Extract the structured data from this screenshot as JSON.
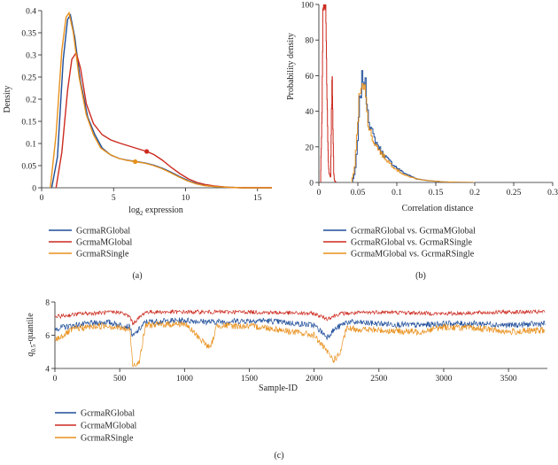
{
  "colors": {
    "blue": "#1f4e9a",
    "red": "#cc2a1f",
    "orange": "#e8901c",
    "axis": "#222222"
  },
  "chart_data": [
    {
      "id": "a",
      "type": "line",
      "panel_label": "(a)",
      "xlabel_main": "log",
      "xlabel_sub": "2",
      "xlabel_rest": " expression",
      "ylabel": "Density",
      "xlim": [
        0,
        16
      ],
      "ylim": [
        0,
        0.4
      ],
      "xticks": [
        0,
        5,
        10,
        15
      ],
      "yticks": [
        0,
        0.05,
        0.1,
        0.15,
        0.2,
        0.25,
        0.3,
        0.35,
        0.4
      ],
      "series": [
        {
          "name": "GcrmaRGlobal",
          "color": "#1f4e9a",
          "x": [
            0.7,
            1.1,
            1.5,
            1.8,
            2.0,
            2.3,
            2.7,
            3.2,
            3.7,
            4.2,
            4.8,
            5.4,
            6.0,
            6.6,
            7.2,
            7.8,
            8.4,
            9.0,
            9.6,
            10.2,
            10.8,
            11.4,
            12.0,
            13.0,
            14.0,
            15.0,
            16.0
          ],
          "y": [
            0.0,
            0.07,
            0.29,
            0.38,
            0.39,
            0.34,
            0.24,
            0.16,
            0.12,
            0.09,
            0.074,
            0.066,
            0.062,
            0.059,
            0.056,
            0.051,
            0.044,
            0.035,
            0.025,
            0.016,
            0.009,
            0.005,
            0.003,
            0.001,
            0.0,
            0.0,
            0.0
          ]
        },
        {
          "name": "GcrmaMGlobal",
          "color": "#cc2a1f",
          "x": [
            1.0,
            1.4,
            1.8,
            2.1,
            2.4,
            2.7,
            3.1,
            3.6,
            4.2,
            4.8,
            5.5,
            6.2,
            6.8,
            7.3,
            7.8,
            8.4,
            9.0,
            9.6,
            10.2,
            10.8,
            11.4,
            12.0,
            13.0,
            14.0,
            15.0,
            16.0
          ],
          "y": [
            0.0,
            0.08,
            0.22,
            0.29,
            0.305,
            0.27,
            0.19,
            0.145,
            0.12,
            0.108,
            0.1,
            0.093,
            0.087,
            0.082,
            0.075,
            0.062,
            0.046,
            0.032,
            0.02,
            0.012,
            0.007,
            0.004,
            0.001,
            0.0,
            0.0,
            0.0
          ]
        },
        {
          "name": "GcrmaRSingle",
          "color": "#e8901c",
          "x": [
            0.6,
            1.0,
            1.4,
            1.7,
            1.9,
            2.2,
            2.6,
            3.1,
            3.6,
            4.1,
            4.7,
            5.3,
            5.9,
            6.5,
            7.1,
            7.7,
            8.3,
            8.9,
            9.5,
            10.1,
            10.7,
            11.3,
            12.0,
            13.0,
            14.0,
            15.0,
            16.0
          ],
          "y": [
            0.0,
            0.12,
            0.31,
            0.385,
            0.395,
            0.35,
            0.25,
            0.165,
            0.12,
            0.09,
            0.076,
            0.067,
            0.062,
            0.059,
            0.056,
            0.051,
            0.044,
            0.035,
            0.025,
            0.016,
            0.009,
            0.005,
            0.003,
            0.001,
            0.0,
            0.0,
            0.0
          ]
        }
      ],
      "markers": [
        {
          "x": 6.5,
          "y": 0.059,
          "color": "#e8901c"
        },
        {
          "x": 7.3,
          "y": 0.082,
          "color": "#cc2a1f"
        }
      ],
      "legend": [
        "GcrmaRGlobal",
        "GcrmaMGlobal",
        "GcrmaRSingle"
      ]
    },
    {
      "id": "b",
      "type": "line",
      "panel_label": "(b)",
      "xlabel": "Correlation distance",
      "ylabel": "Probability density",
      "xlim": [
        0,
        0.3
      ],
      "ylim": [
        0,
        100
      ],
      "xticks": [
        "0",
        "0.05",
        "0.1",
        "0.15",
        "0.2",
        "0.25",
        "0.3"
      ],
      "yticks": [
        "0",
        "20",
        "40",
        "60",
        "80",
        "100"
      ],
      "series": [
        {
          "name": "GcrmaRGlobal vs. GcrmaMGlobal",
          "color": "#1f4e9a",
          "x": [
            0.042,
            0.046,
            0.049,
            0.052,
            0.055,
            0.057,
            0.059,
            0.062,
            0.065,
            0.07,
            0.075,
            0.08,
            0.09,
            0.1,
            0.11,
            0.125,
            0.14,
            0.16,
            0.2
          ],
          "y": [
            0,
            6,
            22,
            45,
            58,
            60,
            55,
            42,
            32,
            25,
            21,
            17,
            12,
            8,
            5,
            2,
            1,
            0.3,
            0
          ]
        },
        {
          "name": "GcrmaRGlobal vs. GcrmaRSingle",
          "color": "#cc2a1f",
          "x": [
            0.002,
            0.004,
            0.005,
            0.006,
            0.007,
            0.008,
            0.009,
            0.01,
            0.011,
            0.012,
            0.013,
            0.014,
            0.015,
            0.016,
            0.017,
            0.018,
            0.019,
            0.02,
            0.022
          ],
          "y": [
            0,
            40,
            90,
            100,
            100,
            100,
            95,
            60,
            30,
            12,
            5,
            4,
            3,
            40,
            61,
            30,
            5,
            1,
            0
          ]
        },
        {
          "name": "GcrmaMGlobal vs. GcrmaRSingle",
          "color": "#e8901c",
          "x": [
            0.041,
            0.045,
            0.048,
            0.051,
            0.054,
            0.056,
            0.058,
            0.061,
            0.064,
            0.069,
            0.074,
            0.08,
            0.09,
            0.1,
            0.11,
            0.125,
            0.14,
            0.16,
            0.2
          ],
          "y": [
            0,
            7,
            24,
            46,
            57,
            59,
            54,
            40,
            30,
            24,
            20,
            16,
            11,
            7,
            4,
            2,
            1,
            0.3,
            0
          ]
        }
      ],
      "legend": [
        "GcrmaRGlobal vs. GcrmaMGlobal",
        "GcrmaRGlobal vs. GcrmaRSingle",
        "GcrmaMGlobal vs. GcrmaRSingle"
      ]
    },
    {
      "id": "c",
      "type": "line",
      "panel_label": "(c)",
      "xlabel": "Sample-ID",
      "ylabel_main": "q",
      "ylabel_sub": "0.5",
      "ylabel_rest": "-quantile",
      "xlim": [
        0,
        3800
      ],
      "ylim": [
        4,
        8
      ],
      "xticks": [
        0,
        500,
        1000,
        1500,
        2000,
        2500,
        3000,
        3500
      ],
      "yticks": [
        4,
        6,
        8
      ],
      "series": [
        {
          "name": "GcrmaRGlobal",
          "color": "#1f4e9a",
          "x": [
            0,
            150,
            400,
            580,
            600,
            700,
            1000,
            1200,
            1600,
            2000,
            2100,
            2150,
            2250,
            2500,
            2800,
            3000,
            3300,
            3500,
            3780
          ],
          "y": [
            6.4,
            6.6,
            6.8,
            6.5,
            5.9,
            6.8,
            6.9,
            6.8,
            6.9,
            6.6,
            5.9,
            6.3,
            6.8,
            6.7,
            6.6,
            6.7,
            6.7,
            6.6,
            6.7
          ],
          "noise": 0.18
        },
        {
          "name": "GcrmaMGlobal",
          "color": "#cc2a1f",
          "x": [
            0,
            200,
            500,
            580,
            600,
            700,
            1000,
            1500,
            2000,
            2100,
            2200,
            2500,
            3000,
            3500,
            3780
          ],
          "y": [
            7.1,
            7.3,
            7.4,
            7.1,
            6.7,
            7.4,
            7.4,
            7.4,
            7.3,
            7.0,
            7.3,
            7.4,
            7.3,
            7.4,
            7.4
          ],
          "noise": 0.12
        },
        {
          "name": "GcrmaRSingle",
          "color": "#e8901c",
          "x": [
            0,
            150,
            400,
            580,
            600,
            650,
            700,
            1000,
            1200,
            1250,
            1600,
            2000,
            2100,
            2150,
            2200,
            2250,
            2500,
            2800,
            3000,
            3300,
            3500,
            3780
          ],
          "y": [
            5.7,
            6.4,
            6.6,
            6.3,
            4.2,
            4.4,
            6.6,
            6.7,
            5.2,
            6.6,
            6.5,
            6.0,
            5.0,
            4.5,
            4.9,
            6.4,
            6.3,
            6.2,
            6.5,
            6.4,
            6.2,
            6.3
          ],
          "noise": 0.2
        }
      ],
      "legend": [
        "GcrmaRGlobal",
        "GcrmaMGlobal",
        "GcrmaRSingle"
      ]
    }
  ]
}
